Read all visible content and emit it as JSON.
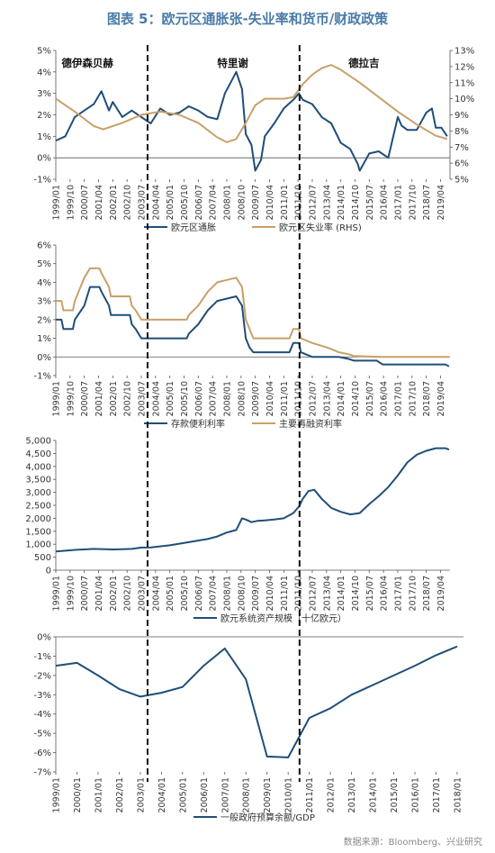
{
  "figure": {
    "title": "图表 5：欧元区通胀张-失业率和货币/财政政策",
    "source": "数据来源：Bloomberg、兴业研究",
    "presidents": [
      "德伊森贝赫",
      "特里谢",
      "德拉吉"
    ]
  },
  "colors": {
    "navy": "#1f4e79",
    "tan": "#c8a06a",
    "axis": "#555555",
    "text": "#333333"
  },
  "chart_data": [
    {
      "type": "line",
      "title": "",
      "ylim": [
        -1,
        5
      ],
      "y2lim": [
        5,
        13
      ],
      "yticks": [
        "-1%",
        "0%",
        "1%",
        "2%",
        "3%",
        "4%",
        "5%"
      ],
      "y2ticks": [
        "5%",
        "6%",
        "7%",
        "8%",
        "9%",
        "10%",
        "11%",
        "12%",
        "13%"
      ],
      "xticks": [
        "1999/01",
        "1999/10",
        "2000/07",
        "2001/04",
        "2002/01",
        "2002/10",
        "2003/07",
        "2004/04",
        "2005/01",
        "2005/10",
        "2006/07",
        "2007/04",
        "2008/01",
        "2008/10",
        "2009/07",
        "2010/04",
        "2011/01",
        "2011/10",
        "2012/07",
        "2013/04",
        "2014/01",
        "2014/10",
        "2015/07",
        "2016/04",
        "2017/01",
        "2017/10",
        "2018/07",
        "2019/04"
      ],
      "series": [
        {
          "name": "欧元区通胀",
          "axis": "left",
          "color": "#1f4e79",
          "x": [
            1999.0,
            1999.5,
            2000.0,
            2000.5,
            2001.0,
            2001.4,
            2001.8,
            2002.0,
            2002.5,
            2003.0,
            2003.5,
            2004.0,
            2004.5,
            2005.0,
            2005.5,
            2006.0,
            2006.5,
            2007.0,
            2007.5,
            2007.9,
            2008.2,
            2008.5,
            2008.8,
            2009.0,
            2009.3,
            2009.5,
            2009.8,
            2010.0,
            2010.5,
            2011.0,
            2011.5,
            2011.8,
            2012.0,
            2012.5,
            2013.0,
            2013.5,
            2014.0,
            2014.5,
            2014.9,
            2015.0,
            2015.5,
            2016.0,
            2016.5,
            2017.0,
            2017.2,
            2017.5,
            2018.0,
            2018.5,
            2018.8,
            2019.0,
            2019.3,
            2019.6
          ],
          "y": [
            0.8,
            1.0,
            1.9,
            2.2,
            2.5,
            3.1,
            2.2,
            2.6,
            1.9,
            2.2,
            1.9,
            1.6,
            2.3,
            2.0,
            2.1,
            2.4,
            2.2,
            1.9,
            1.8,
            3.0,
            3.5,
            4.0,
            3.2,
            1.1,
            0.6,
            -0.6,
            -0.1,
            1.0,
            1.6,
            2.3,
            2.7,
            3.0,
            2.7,
            2.5,
            1.9,
            1.6,
            0.7,
            0.4,
            -0.3,
            -0.6,
            0.2,
            0.3,
            0.0,
            1.9,
            1.5,
            1.3,
            1.3,
            2.1,
            2.3,
            1.4,
            1.4,
            1.0
          ]
        },
        {
          "name": "欧元区失业率 (RHS)",
          "axis": "right",
          "color": "#c8a06a",
          "x": [
            1999.0,
            2000.0,
            2001.0,
            2001.5,
            2002.5,
            2003.5,
            2004.5,
            2005.5,
            2006.5,
            2007.5,
            2008.0,
            2008.5,
            2009.0,
            2009.5,
            2010.0,
            2011.0,
            2011.5,
            2012.0,
            2012.5,
            2013.0,
            2013.5,
            2014.0,
            2015.0,
            2016.0,
            2017.0,
            2018.0,
            2019.0,
            2019.6
          ],
          "y": [
            10.0,
            9.2,
            8.3,
            8.1,
            8.5,
            9.0,
            9.2,
            9.0,
            8.5,
            7.6,
            7.3,
            7.5,
            8.5,
            9.6,
            10.0,
            10.0,
            10.1,
            10.9,
            11.5,
            11.9,
            12.1,
            11.8,
            11.0,
            10.1,
            9.2,
            8.4,
            7.7,
            7.5
          ]
        }
      ]
    },
    {
      "type": "line",
      "title": "",
      "ylim": [
        -1,
        6
      ],
      "yticks": [
        "-1%",
        "0%",
        "1%",
        "2%",
        "3%",
        "4%",
        "5%",
        "6%"
      ],
      "xticks": [
        "1999/01",
        "1999/10",
        "2000/07",
        "2001/04",
        "2002/01",
        "2002/10",
        "2003/07",
        "2004/04",
        "2005/01",
        "2005/10",
        "2006/07",
        "2007/04",
        "2008/01",
        "2008/10",
        "2009/07",
        "2010/04",
        "2011/01",
        "2011/10",
        "2012/07",
        "2013/04",
        "2014/01",
        "2014/10",
        "2015/07",
        "2016/04",
        "2017/01",
        "2017/10",
        "2018/07",
        "2019/04"
      ],
      "series": [
        {
          "name": "存款便利利率",
          "axis": "left",
          "color": "#1f4e79",
          "x": [
            1999.0,
            1999.3,
            1999.4,
            1999.9,
            2000.0,
            2000.5,
            2000.8,
            2001.3,
            2001.4,
            2001.8,
            2001.9,
            2002.9,
            2003.0,
            2003.2,
            2003.5,
            2005.9,
            2006.0,
            2006.5,
            2007.0,
            2007.5,
            2008.5,
            2008.8,
            2009.0,
            2009.2,
            2009.4,
            2011.3,
            2011.5,
            2011.8,
            2011.9,
            2012.5,
            2013.3,
            2013.9,
            2014.4,
            2014.7,
            2015.9,
            2016.2,
            2019.5,
            2019.7
          ],
          "y": [
            2.0,
            2.0,
            1.5,
            1.5,
            2.0,
            2.75,
            3.75,
            3.75,
            3.5,
            2.75,
            2.25,
            2.25,
            1.75,
            1.5,
            1.0,
            1.0,
            1.25,
            1.75,
            2.5,
            3.0,
            3.25,
            2.75,
            1.0,
            0.5,
            0.25,
            0.25,
            0.75,
            0.75,
            0.25,
            0.0,
            0.0,
            0.0,
            -0.1,
            -0.2,
            -0.2,
            -0.4,
            -0.4,
            -0.5
          ]
        },
        {
          "name": "主要再融资利率",
          "axis": "left",
          "color": "#c8a06a",
          "x": [
            1999.0,
            1999.3,
            1999.4,
            1999.9,
            2000.0,
            2000.5,
            2000.8,
            2001.3,
            2001.4,
            2001.8,
            2001.9,
            2002.9,
            2003.0,
            2003.2,
            2003.5,
            2005.9,
            2006.0,
            2006.5,
            2007.0,
            2007.5,
            2008.5,
            2008.8,
            2009.0,
            2009.2,
            2009.4,
            2011.3,
            2011.5,
            2011.8,
            2011.9,
            2012.5,
            2013.3,
            2013.9,
            2014.4,
            2014.7,
            2016.2,
            2019.7
          ],
          "y": [
            3.0,
            3.0,
            2.5,
            2.5,
            3.0,
            4.25,
            4.75,
            4.75,
            4.5,
            3.75,
            3.25,
            3.25,
            2.75,
            2.5,
            2.0,
            2.0,
            2.25,
            2.75,
            3.5,
            4.0,
            4.25,
            3.75,
            2.0,
            1.5,
            1.0,
            1.0,
            1.5,
            1.5,
            1.0,
            0.75,
            0.5,
            0.25,
            0.15,
            0.05,
            0.0,
            0.0
          ]
        }
      ]
    },
    {
      "type": "line",
      "title": "",
      "ylim": [
        0,
        5000
      ],
      "yticks": [
        "0",
        "500",
        "1,000",
        "1,500",
        "2,000",
        "2,500",
        "3,000",
        "3,500",
        "4,000",
        "4,500",
        "5,000"
      ],
      "xticks": [
        "1999/01",
        "1999/10",
        "2000/07",
        "2001/04",
        "2002/01",
        "2002/10",
        "2003/07",
        "2004/04",
        "2005/01",
        "2005/10",
        "2006/07",
        "2007/04",
        "2008/01",
        "2008/10",
        "2009/07",
        "2010/04",
        "2011/01",
        "2011/10",
        "2012/07",
        "2013/04",
        "2014/01",
        "2014/10",
        "2015/07",
        "2016/04",
        "2017/01",
        "2017/10",
        "2018/07",
        "2019/04"
      ],
      "series": [
        {
          "name": "欧元系统资产规模（十亿欧元）",
          "axis": "left",
          "color": "#1f4e79",
          "x": [
            1999.0,
            2000.0,
            2001.0,
            2002.0,
            2003.0,
            2003.5,
            2004.0,
            2005.0,
            2006.0,
            2007.0,
            2007.5,
            2008.0,
            2008.5,
            2008.8,
            2009.0,
            2009.3,
            2009.6,
            2010.0,
            2010.5,
            2011.0,
            2011.5,
            2011.8,
            2012.0,
            2012.3,
            2012.6,
            2013.0,
            2013.5,
            2014.0,
            2014.5,
            2015.0,
            2015.5,
            2016.0,
            2016.5,
            2017.0,
            2017.5,
            2018.0,
            2018.5,
            2019.0,
            2019.5,
            2019.7
          ],
          "y": [
            720,
            780,
            820,
            800,
            820,
            870,
            880,
            960,
            1080,
            1200,
            1300,
            1450,
            1550,
            2000,
            1950,
            1850,
            1900,
            1920,
            1950,
            2000,
            2200,
            2450,
            2750,
            3050,
            3100,
            2750,
            2400,
            2250,
            2150,
            2200,
            2550,
            2850,
            3200,
            3650,
            4150,
            4450,
            4600,
            4700,
            4700,
            4650
          ]
        }
      ]
    },
    {
      "type": "line",
      "title": "",
      "ylim": [
        -7,
        0
      ],
      "yticks": [
        "-7%",
        "-6%",
        "-5%",
        "-4%",
        "-3%",
        "-2%",
        "-1%",
        "0%"
      ],
      "xticks": [
        "1999/01",
        "2000/01",
        "2001/01",
        "2002/01",
        "2003/01",
        "2004/01",
        "2005/01",
        "2006/01",
        "2007/01",
        "2008/01",
        "2009/01",
        "2010/01",
        "2011/01",
        "2012/01",
        "2013/01",
        "2014/01",
        "2015/01",
        "2016/01",
        "2017/01",
        "2018/01"
      ],
      "series": [
        {
          "name": "一般政府预算余额/GDP",
          "axis": "left",
          "color": "#1f4e79",
          "x": [
            1999,
            2000,
            2001,
            2002,
            2003,
            2004,
            2005,
            2006,
            2007,
            2008,
            2009,
            2010,
            2011,
            2012,
            2013,
            2014,
            2015,
            2016,
            2017,
            2018
          ],
          "y": [
            -1.5,
            -1.35,
            -2.0,
            -2.7,
            -3.1,
            -2.9,
            -2.6,
            -1.5,
            -0.6,
            -2.2,
            -6.2,
            -6.25,
            -4.2,
            -3.7,
            -3.0,
            -2.5,
            -2.0,
            -1.5,
            -0.95,
            -0.5
          ]
        }
      ]
    }
  ]
}
